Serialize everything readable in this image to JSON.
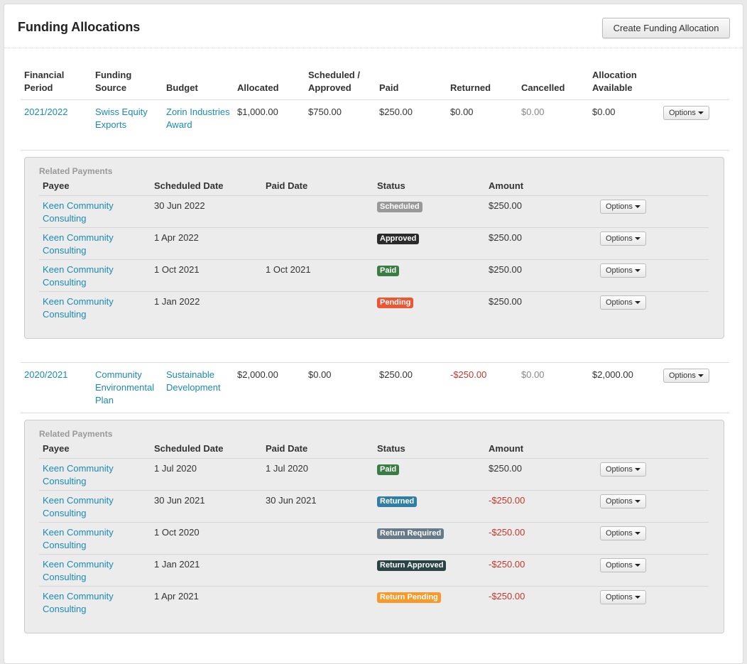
{
  "header": {
    "title": "Funding Allocations",
    "create_button": "Create Funding Allocation"
  },
  "columns": [
    "Financial Period",
    "Funding Source",
    "Budget",
    "Allocated",
    "Scheduled / Approved",
    "Paid",
    "Returned",
    "Cancelled",
    "Allocation Available"
  ],
  "payment_section_label": "Related Payments",
  "payment_columns": [
    "Payee",
    "Scheduled Date",
    "Paid Date",
    "Status",
    "Amount"
  ],
  "options_label": "Options",
  "status_colors": {
    "Scheduled": "#999999",
    "Approved": "#2b2b2b",
    "Paid": "#3a7d44",
    "Pending": "#ee5533",
    "Returned": "#2e7fa3",
    "Return Required": "#677a8a",
    "Return Approved": "#2a4446",
    "Return Pending": "#f89a2a"
  },
  "allocations": [
    {
      "period": "2021/2022",
      "source": "Swiss Equity Exports",
      "budget": "Zorin Industries Award",
      "allocated": "$1,000.00",
      "scheduled": "$750.00",
      "paid": "$250.00",
      "returned": "$0.00",
      "cancelled": "$0.00",
      "available": "$0.00",
      "payments": [
        {
          "payee": "Keen Community Consulting",
          "scheduled_date": "30 Jun 2022",
          "paid_date": "",
          "status": "Scheduled",
          "amount": "$250.00"
        },
        {
          "payee": "Keen Community Consulting",
          "scheduled_date": "1 Apr 2022",
          "paid_date": "",
          "status": "Approved",
          "amount": "$250.00"
        },
        {
          "payee": "Keen Community Consulting",
          "scheduled_date": "1 Oct 2021",
          "paid_date": "1 Oct 2021",
          "status": "Paid",
          "amount": "$250.00"
        },
        {
          "payee": "Keen Community Consulting",
          "scheduled_date": "1 Jan 2022",
          "paid_date": "",
          "status": "Pending",
          "amount": "$250.00"
        }
      ]
    },
    {
      "period": "2020/2021",
      "source": "Community Environmental Plan",
      "budget": "Sustainable Development",
      "allocated": "$2,000.00",
      "scheduled": "$0.00",
      "paid": "$250.00",
      "returned": "-$250.00",
      "cancelled": "$0.00",
      "available": "$2,000.00",
      "payments": [
        {
          "payee": "Keen Community Consulting",
          "scheduled_date": "1 Jul 2020",
          "paid_date": "1 Jul 2020",
          "status": "Paid",
          "amount": "$250.00"
        },
        {
          "payee": "Keen Community Consulting",
          "scheduled_date": "30 Jun 2021",
          "paid_date": "30 Jun 2021",
          "status": "Returned",
          "amount": "-$250.00"
        },
        {
          "payee": "Keen Community Consulting",
          "scheduled_date": "1 Oct 2020",
          "paid_date": "",
          "status": "Return Required",
          "amount": "-$250.00"
        },
        {
          "payee": "Keen Community Consulting",
          "scheduled_date": "1 Jan 2021",
          "paid_date": "",
          "status": "Return Approved",
          "amount": "-$250.00"
        },
        {
          "payee": "Keen Community Consulting",
          "scheduled_date": "1 Apr 2021",
          "paid_date": "",
          "status": "Return Pending",
          "amount": "-$250.00"
        }
      ]
    }
  ]
}
